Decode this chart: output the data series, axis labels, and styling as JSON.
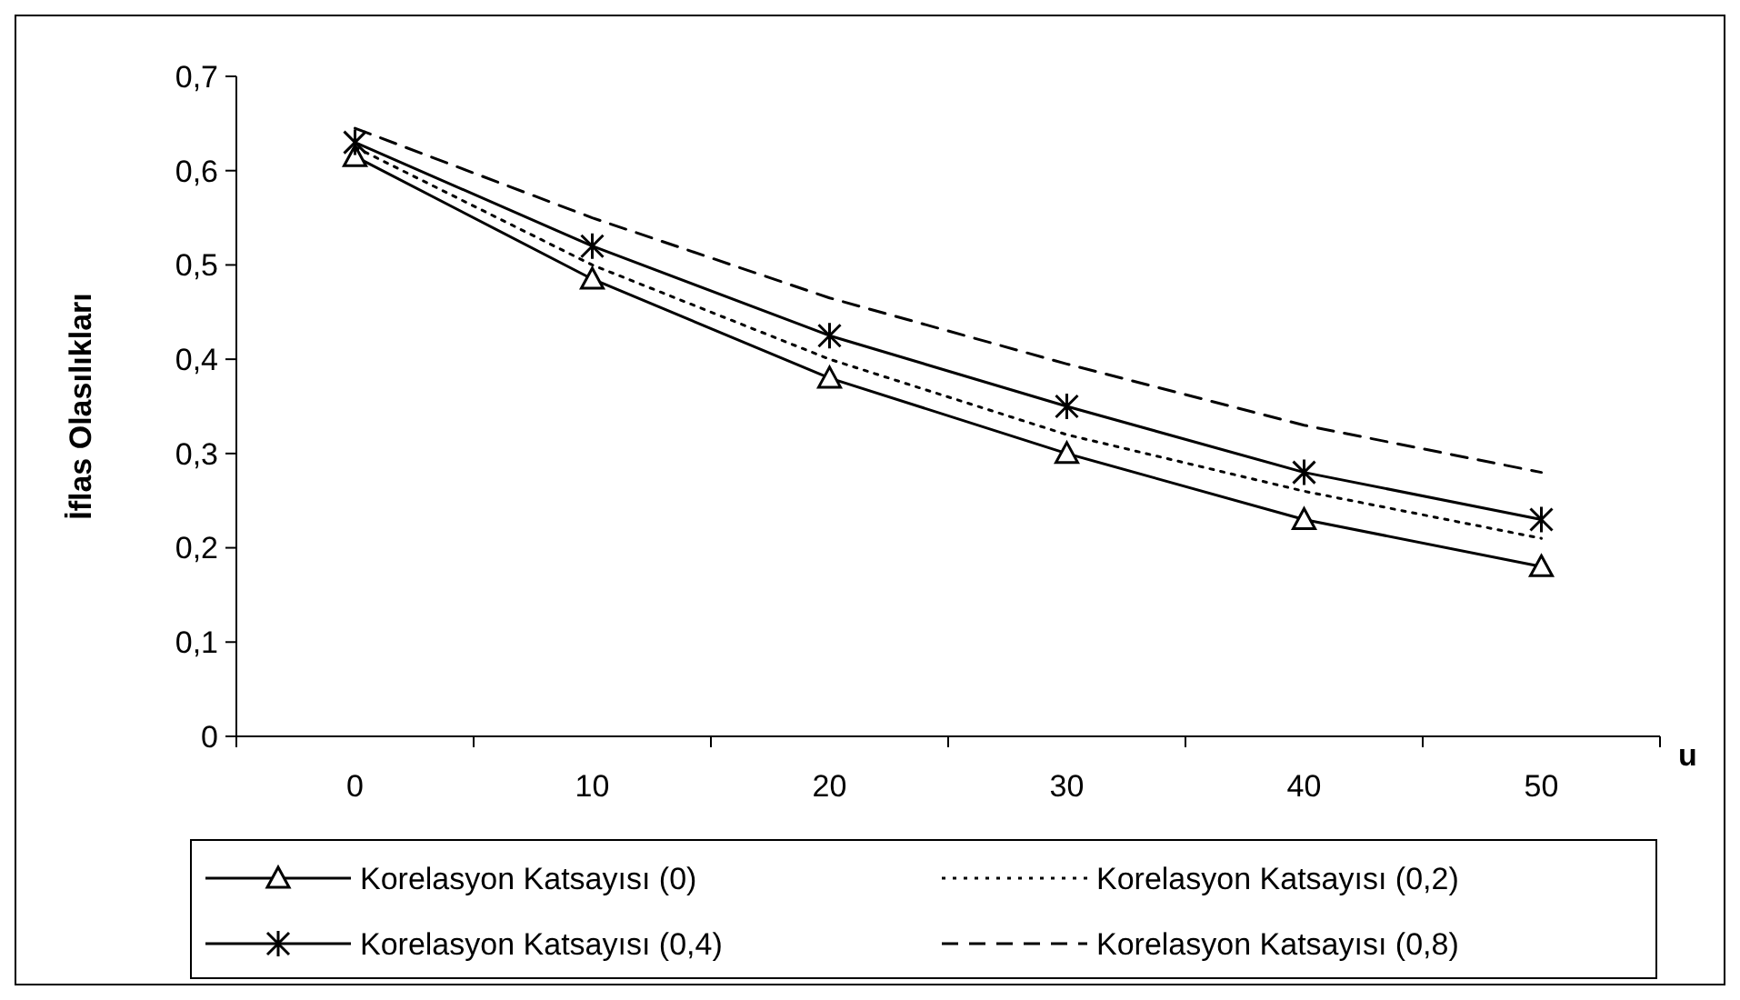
{
  "chart_data": {
    "type": "line",
    "ylabel": "İflas Olasılıkları",
    "xlabel": "u",
    "categories": [
      "0",
      "10",
      "20",
      "30",
      "40",
      "50"
    ],
    "ylim": [
      0,
      0.7
    ],
    "yticks": [
      {
        "value": 0,
        "label": "0"
      },
      {
        "value": 0.1,
        "label": "0,1"
      },
      {
        "value": 0.2,
        "label": "0,2"
      },
      {
        "value": 0.3,
        "label": "0,3"
      },
      {
        "value": 0.4,
        "label": "0,4"
      },
      {
        "value": 0.5,
        "label": "0,5"
      },
      {
        "value": 0.6,
        "label": "0,6"
      },
      {
        "value": 0.7,
        "label": "0,7"
      }
    ],
    "grid": false,
    "legend": "bottom",
    "series": [
      {
        "name": "Korelasyon Katsayısı (0)",
        "color": "#000000",
        "marker": "triangle",
        "line_style": "solid",
        "values": [
          0.615,
          0.485,
          0.38,
          0.3,
          0.23,
          0.18
        ]
      },
      {
        "name": "Korelasyon Katsayısı (0,2)",
        "color": "#000000",
        "marker": "none",
        "line_style": "dotted",
        "values": [
          0.625,
          0.5,
          0.4,
          0.32,
          0.26,
          0.21
        ]
      },
      {
        "name": "Korelasyon Katsayısı (0,4)",
        "color": "#000000",
        "marker": "cross",
        "line_style": "solid",
        "values": [
          0.63,
          0.52,
          0.425,
          0.35,
          0.28,
          0.23
        ]
      },
      {
        "name": "Korelasyon Katsayısı (0,8)",
        "color": "#000000",
        "marker": "none",
        "line_style": "dashed",
        "values": [
          0.645,
          0.55,
          0.465,
          0.395,
          0.33,
          0.28
        ]
      }
    ]
  }
}
